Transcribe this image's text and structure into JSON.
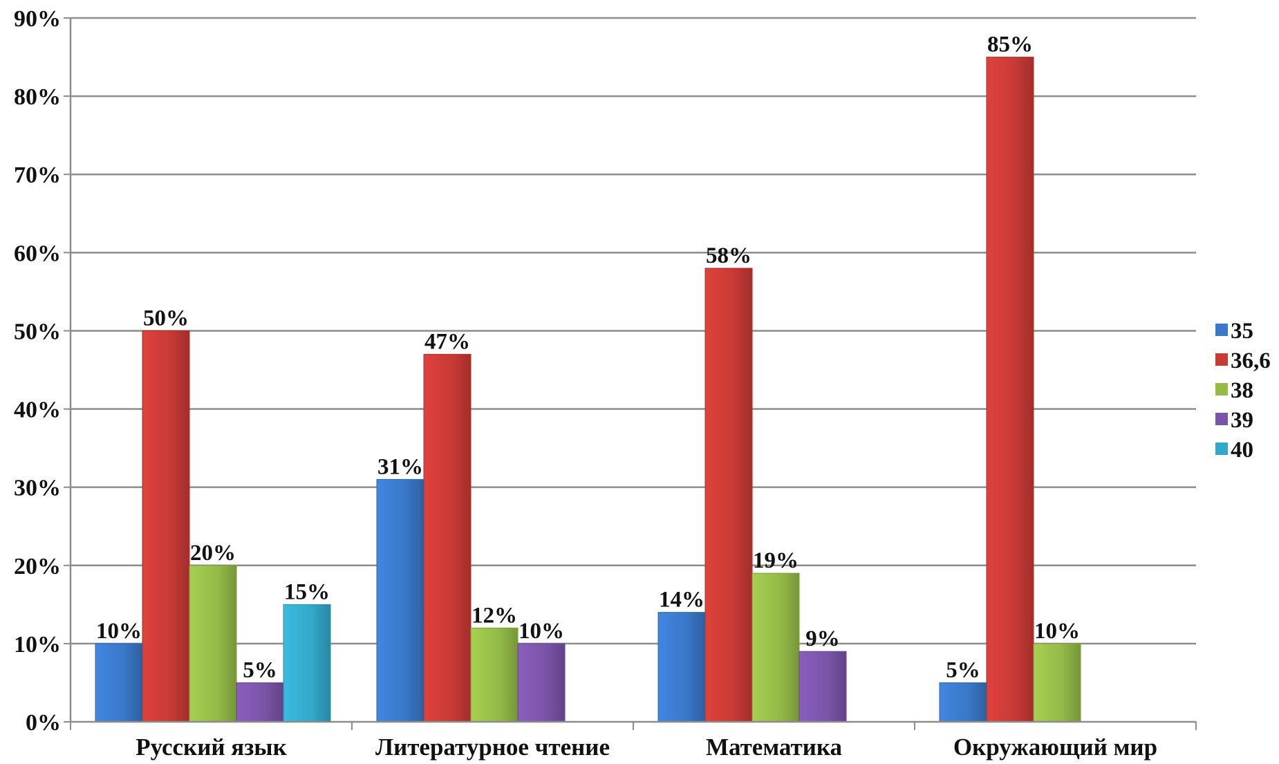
{
  "chart_data": {
    "type": "bar",
    "title": "",
    "xlabel": "",
    "ylabel": "",
    "ylim": [
      0,
      90
    ],
    "y_ticks": [
      0,
      10,
      20,
      30,
      40,
      50,
      60,
      70,
      80,
      90
    ],
    "y_tick_labels": [
      "0%",
      "10%",
      "20%",
      "30%",
      "40%",
      "50%",
      "60%",
      "70%",
      "80%",
      "90%"
    ],
    "grid": true,
    "legend_position": "right",
    "categories": [
      "Русский язык",
      "Литературное чтение",
      "Математика",
      "Окружающий мир"
    ],
    "series": [
      {
        "name": "35",
        "color": "#3a78c8",
        "values": [
          10,
          31,
          14,
          5
        ],
        "labels": [
          "10%",
          "31%",
          "14%",
          "5%"
        ]
      },
      {
        "name": "36,6",
        "color": "#c83a36",
        "values": [
          50,
          47,
          58,
          85
        ],
        "labels": [
          "50%",
          "47%",
          "58%",
          "85%"
        ]
      },
      {
        "name": "38",
        "color": "#94ba48",
        "values": [
          20,
          12,
          19,
          10
        ],
        "labels": [
          "20%",
          "12%",
          "19%",
          "10%"
        ]
      },
      {
        "name": "39",
        "color": "#7a54a8",
        "values": [
          5,
          10,
          9,
          null
        ],
        "labels": [
          "5%",
          "10%",
          "9%",
          ""
        ]
      },
      {
        "name": "40",
        "color": "#33a8c8",
        "values": [
          15,
          null,
          null,
          null
        ],
        "labels": [
          "15%",
          "",
          "",
          ""
        ]
      }
    ]
  }
}
